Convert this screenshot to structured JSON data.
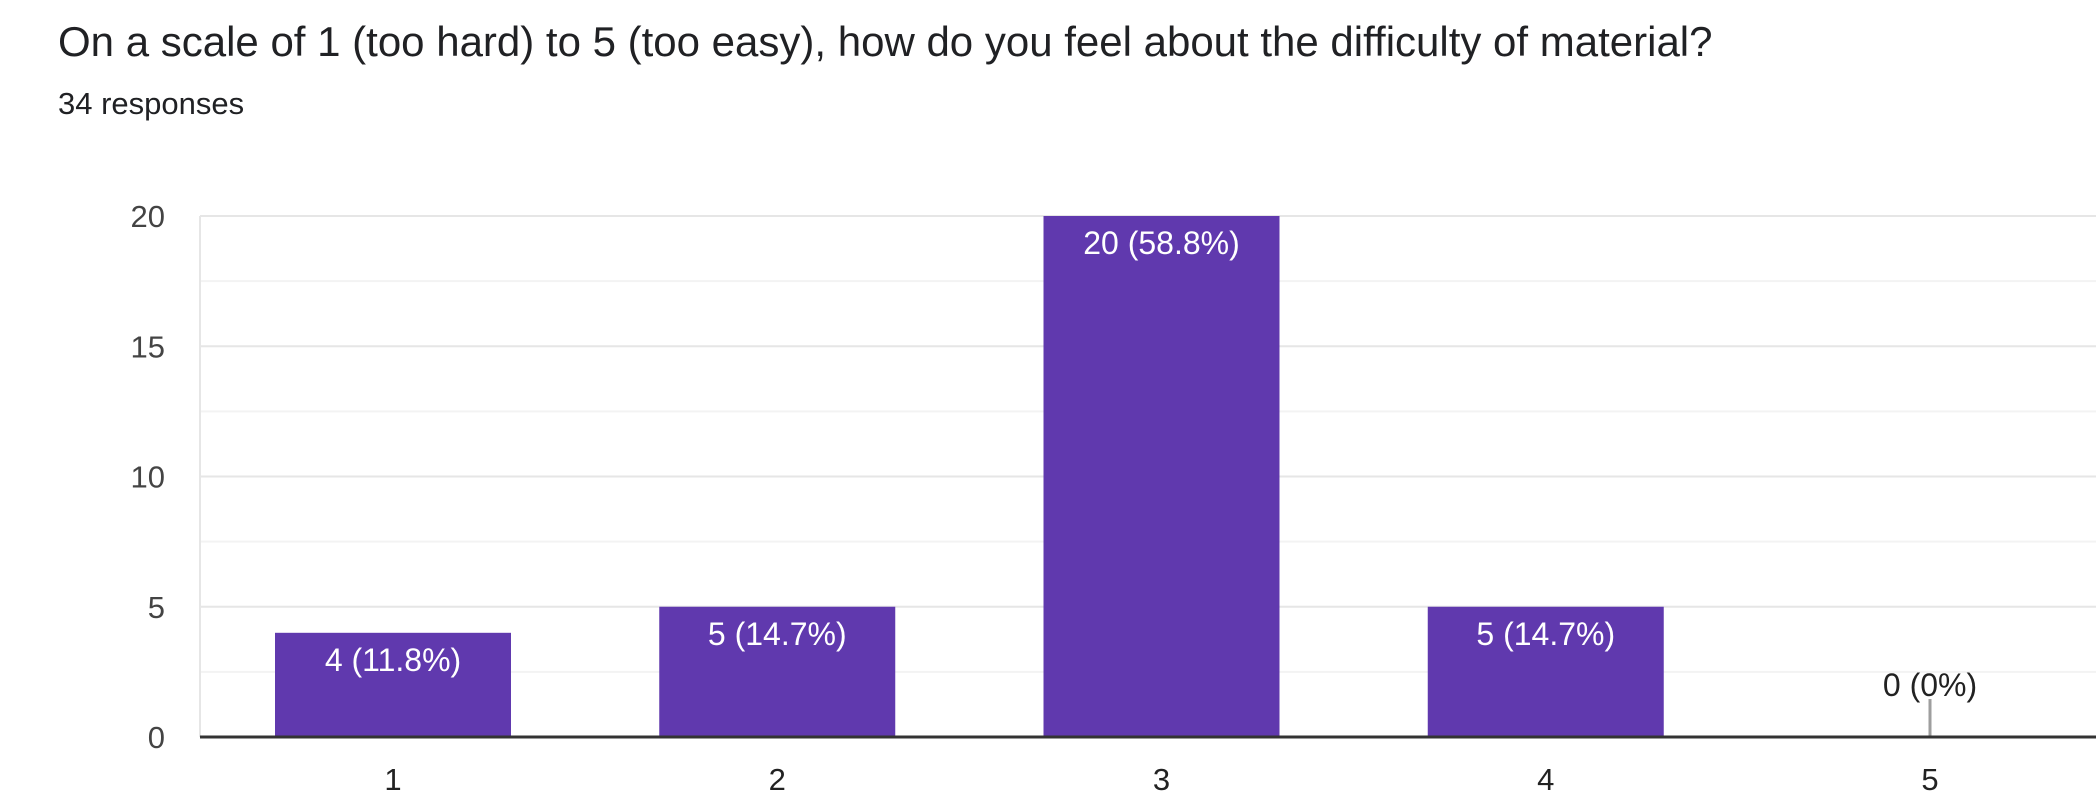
{
  "question": {
    "title": "On a scale of 1 (too hard) to 5 (too easy), how do you feel about the difficulty of material?",
    "responses": "34 responses"
  },
  "colors": {
    "bar": "#6039ae",
    "grid_major": "#e6e6e6",
    "grid_minor": "#f3f3f3",
    "axis": "#333333",
    "label_inside": "#ffffff",
    "label_outside": "#222222"
  },
  "chart_data": {
    "type": "bar",
    "title": "",
    "xlabel": "",
    "ylabel": "",
    "categories": [
      "1",
      "2",
      "3",
      "4",
      "5"
    ],
    "values": [
      4,
      5,
      20,
      5,
      0
    ],
    "data_labels": [
      "4 (11.8%)",
      "5 (14.7%)",
      "20 (58.8%)",
      "5 (14.7%)",
      "0 (0%)"
    ],
    "ylim": [
      0,
      20
    ],
    "yticks": [
      0,
      5,
      10,
      15,
      20
    ],
    "grid": true,
    "legend": "none"
  }
}
